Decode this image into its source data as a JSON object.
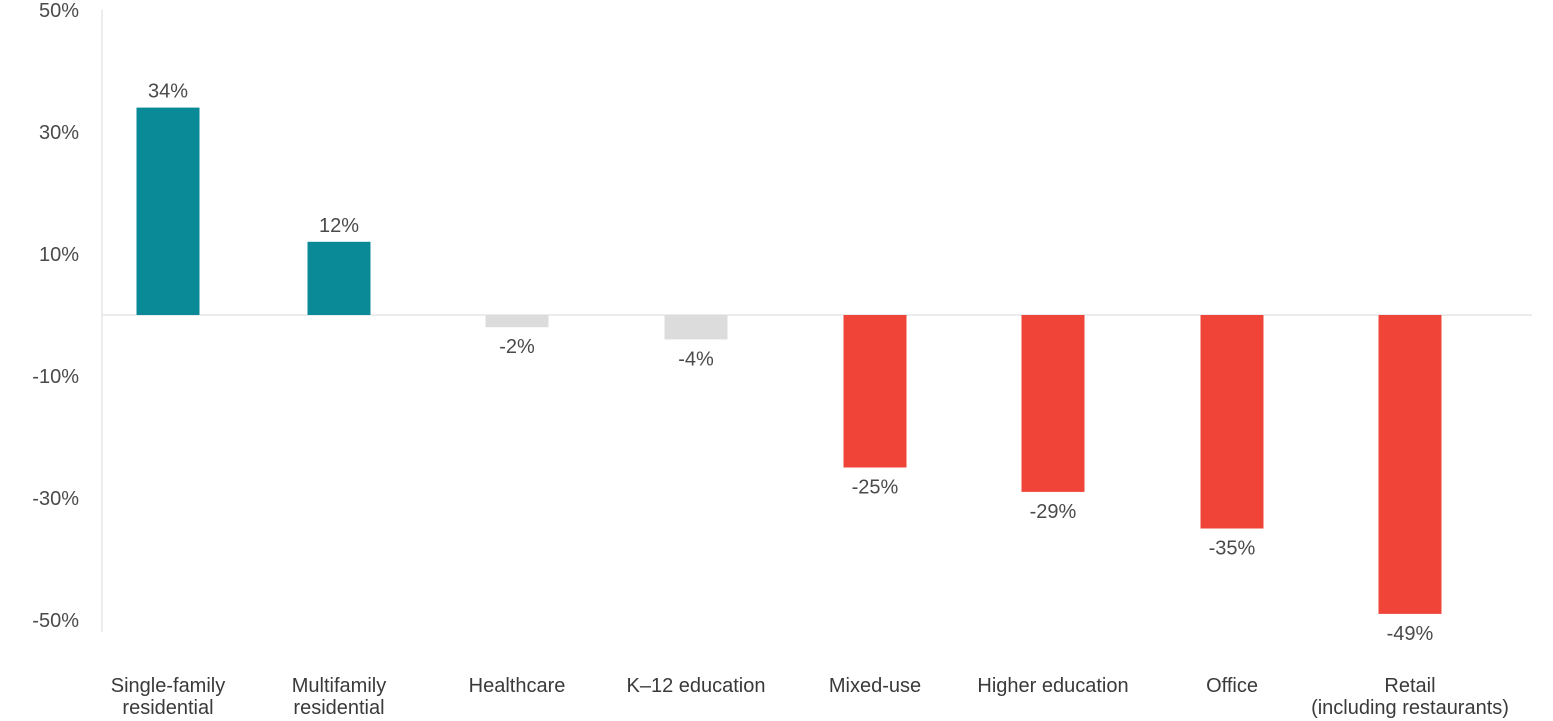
{
  "chart_data": {
    "type": "bar",
    "categories": [
      [
        "Single-family",
        "residential"
      ],
      [
        "Multifamily",
        "residential"
      ],
      [
        "Healthcare"
      ],
      [
        "K–12 education"
      ],
      [
        "Mixed-use"
      ],
      [
        "Higher education"
      ],
      [
        "Office"
      ],
      [
        "Retail",
        "(including restaurants)"
      ]
    ],
    "values": [
      34,
      12,
      -2,
      -4,
      -25,
      -29,
      -35,
      -49
    ],
    "value_labels": [
      "34%",
      "12%",
      "-2%",
      "-4%",
      "-25%",
      "-29%",
      "-35%",
      "-49%"
    ],
    "bar_colors": [
      "#0a8a96",
      "#0a8a96",
      "#dcdcdc",
      "#dcdcdc",
      "#f04438",
      "#f04438",
      "#f04438",
      "#f04438"
    ],
    "y_ticks": [
      {
        "value": 50,
        "label": "50%"
      },
      {
        "value": 30,
        "label": "30%"
      },
      {
        "value": 10,
        "label": "10%"
      },
      {
        "value": -10,
        "label": "-10%"
      },
      {
        "value": -30,
        "label": "-30%"
      },
      {
        "value": -50,
        "label": "-50%"
      }
    ],
    "ylim": [
      -52,
      50
    ],
    "grid": false,
    "title": "",
    "xlabel": "",
    "ylabel": ""
  }
}
